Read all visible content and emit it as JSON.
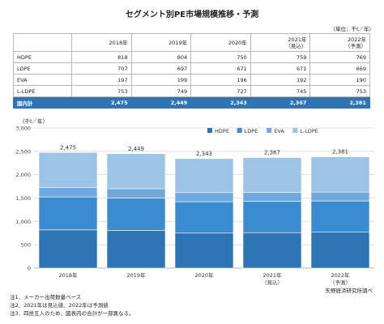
{
  "title": "セグメント別PE市場規模推移・予測",
  "table": {
    "unit": "（単位：千t／年）",
    "header": [
      "",
      "2018年",
      "2019年",
      "2020年",
      "2021年\n（見込）",
      "2022年\n（予測）"
    ],
    "rows": [
      {
        "label": "HDPE",
        "values": [
          "818",
          "804",
          "750",
          "759",
          "769"
        ]
      },
      {
        "label": "LDPE",
        "values": [
          "707",
          "697",
          "671",
          "671",
          "669"
        ]
      },
      {
        "label": "EVA",
        "values": [
          "197",
          "199",
          "196",
          "192",
          "190"
        ]
      },
      {
        "label": "L-LDPE",
        "values": [
          "753",
          "749",
          "727",
          "745",
          "753"
        ]
      },
      {
        "label": "国内計",
        "values": [
          "2,475",
          "2,449",
          "2,343",
          "2,367",
          "2,381"
        ],
        "total": true
      }
    ]
  },
  "chart_unit": "（千t／年）",
  "chart_data": {
    "type": "bar",
    "stacked": true,
    "categories": [
      "2018年",
      "2019年",
      "2020年",
      "2021年\n（見込）",
      "2022年\n（予測）"
    ],
    "series": [
      {
        "name": "HDPE",
        "values": [
          818,
          804,
          750,
          759,
          769
        ],
        "color": "#2e75b6"
      },
      {
        "name": "LDPE",
        "values": [
          707,
          697,
          671,
          671,
          669
        ],
        "color": "#3b8bd0"
      },
      {
        "name": "EVA",
        "values": [
          197,
          199,
          196,
          192,
          190
        ],
        "color": "#6fa8dc"
      },
      {
        "name": "L-LDPE",
        "values": [
          753,
          749,
          727,
          745,
          753
        ],
        "color": "#9dc3e6"
      }
    ],
    "totals": [
      2475,
      2449,
      2343,
      2367,
      2381
    ],
    "total_labels": [
      "2,475",
      "2,449",
      "2,343",
      "2,367",
      "2,381"
    ],
    "ylim": [
      0,
      3000
    ],
    "yticks": [
      0,
      500,
      1000,
      1500,
      2000,
      2500,
      3000
    ],
    "ytick_labels": [
      "0",
      "500",
      "1,000",
      "1,500",
      "2,000",
      "2,500",
      "3,000"
    ],
    "grid": true,
    "legend": "top-right",
    "title": "",
    "xlabel": "",
    "ylabel": ""
  },
  "source": "矢野経済研究所調べ",
  "notes": [
    "注1．メーカー出荷数量ベース",
    "注2．2021年は見込値、2022年は予測値",
    "注3．四捨五入のため、図表内の合計が一部異なる。"
  ]
}
